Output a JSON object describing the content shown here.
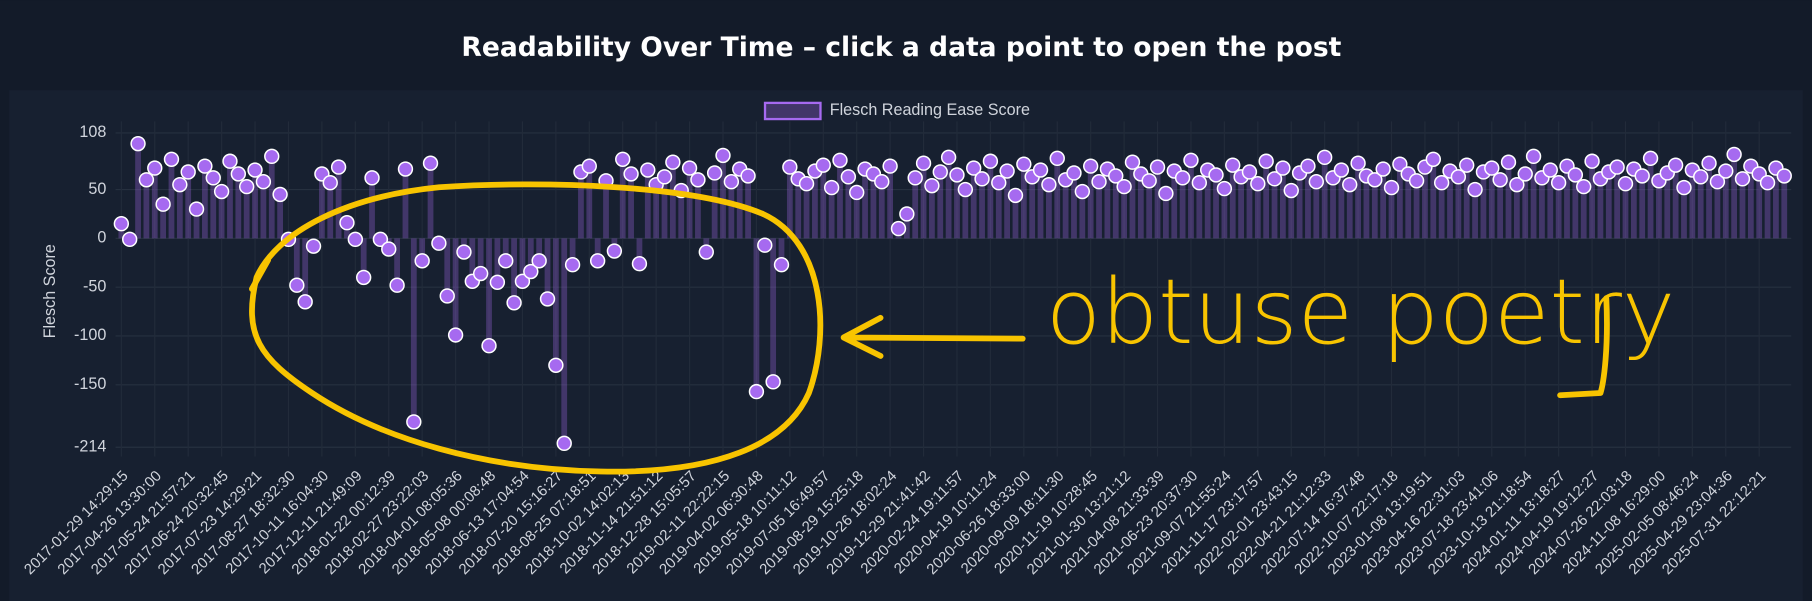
{
  "chart_data": {
    "type": "line",
    "title": "Readability Over Time – click a data point to open the post",
    "y_label": "Flesch Score",
    "categories": [
      "2017-01-29 14:29:15",
      null,
      null,
      null,
      "2017-04-26 13:30:00",
      null,
      null,
      null,
      "2017-05-24 21:57:21",
      null,
      null,
      null,
      "2017-06-24 20:32:45",
      null,
      null,
      null,
      "2017-07-23 14:29:21",
      null,
      null,
      null,
      "2017-08-27 18:32:30",
      null,
      null,
      null,
      "2017-10-11 16:04:30",
      null,
      null,
      null,
      "2017-12-11 21:49:09",
      null,
      null,
      null,
      "2018-01-22 00:12:39",
      null,
      null,
      null,
      "2018-02-27 23:22:03",
      null,
      null,
      null,
      "2018-04-01 08:05:36",
      null,
      null,
      null,
      "2018-05-08 00:08:48",
      null,
      null,
      null,
      "2018-06-13 17:04:54",
      null,
      null,
      null,
      "2018-07-20 15:16:27",
      null,
      null,
      null,
      "2018-08-25 07:18:51",
      null,
      null,
      null,
      "2018-10-02 14:02:13",
      null,
      null,
      null,
      "2018-11-14 21:51:12",
      null,
      null,
      null,
      "2018-12-28 15:05:57",
      null,
      null,
      null,
      "2019-02-11 22:22:15",
      null,
      null,
      null,
      "2019-04-02 06:30:48",
      null,
      null,
      null,
      "2019-05-18 10:11:12",
      null,
      null,
      null,
      "2019-07-05 16:49:57",
      null,
      null,
      null,
      "2019-08-29 15:25:18",
      null,
      null,
      null,
      "2019-10-26 18:02:24",
      null,
      null,
      null,
      "2019-12-29 21:41:42",
      null,
      null,
      null,
      "2020-02-24 19:11:57",
      null,
      null,
      null,
      "2020-04-19 10:11:24",
      null,
      null,
      null,
      "2020-06-26 18:33:00",
      null,
      null,
      null,
      "2020-09-09 18:11:30",
      null,
      null,
      null,
      "2020-11-19 10:28:45",
      null,
      null,
      null,
      "2021-01-30 13:21:12",
      null,
      null,
      null,
      "2021-04-08 21:33:39",
      null,
      null,
      null,
      "2021-06-23 20:37:30",
      null,
      null,
      null,
      "2021-09-07 21:55:24",
      null,
      null,
      null,
      "2021-11-17 23:17:57",
      null,
      null,
      null,
      "2022-02-01 23:43:15",
      null,
      null,
      null,
      "2022-04-21 21:12:33",
      null,
      null,
      null,
      "2022-07-14 16:37:48",
      null,
      null,
      null,
      "2022-10-07 22:17:18",
      null,
      null,
      null,
      "2023-01-08 13:19:51",
      null,
      null,
      null,
      "2023-04-16 22:31:03",
      null,
      null,
      null,
      "2023-07-18 23:41:06",
      null,
      null,
      null,
      "2023-10-13 21:18:54",
      null,
      null,
      null,
      "2024-01-11 13:18:27",
      null,
      null,
      null,
      "2024-04-19 19:12:27",
      null,
      null,
      null,
      "2024-07-26 22:03:18",
      null,
      null,
      null,
      "2024-11-08 16:29:00",
      null,
      null,
      null,
      "2025-02-05 08:46:24",
      null,
      null,
      null,
      "2025-04-29 23:04:36",
      null,
      null,
      null,
      "2025-07-31 22:12:21",
      null,
      null,
      null
    ],
    "series": [
      {
        "name": "Flesch Reading Ease Score",
        "color": "#a66af0",
        "values": [
          15,
          -1,
          97,
          60,
          72,
          35,
          81,
          55,
          68,
          30,
          74,
          62,
          48,
          79,
          66,
          53,
          70,
          58,
          84,
          45,
          -1,
          -48,
          -65,
          -8,
          66,
          57,
          73,
          16,
          -1,
          -40,
          62,
          -1,
          -11,
          -48,
          71,
          -188,
          -23,
          77,
          -5,
          -59,
          -99,
          -14,
          -44,
          -36,
          -110,
          -45,
          -23,
          -66,
          -44,
          -34,
          -23,
          -62,
          -130,
          -210,
          -27,
          68,
          74,
          -23,
          59,
          -13,
          81,
          66,
          -26,
          70,
          55,
          63,
          78,
          49,
          72,
          60,
          -14,
          67,
          85,
          58,
          71,
          64,
          -157,
          -7,
          -147,
          -27,
          73,
          61,
          56,
          69,
          75,
          52,
          80,
          63,
          47,
          71,
          66,
          58,
          74,
          10,
          25,
          62,
          77,
          54,
          68,
          83,
          65,
          50,
          72,
          61,
          79,
          57,
          69,
          44,
          76,
          63,
          70,
          55,
          82,
          60,
          67,
          48,
          74,
          58,
          71,
          64,
          53,
          78,
          66,
          59,
          73,
          46,
          69,
          62,
          80,
          57,
          70,
          65,
          51,
          75,
          63,
          68,
          56,
          79,
          61,
          72,
          49,
          67,
          74,
          58,
          83,
          62,
          70,
          55,
          77,
          64,
          60,
          71,
          52,
          76,
          66,
          59,
          73,
          81,
          57,
          69,
          63,
          75,
          50,
          68,
          72,
          60,
          78,
          55,
          66,
          84,
          62,
          70,
          57,
          74,
          65,
          53,
          79,
          61,
          68,
          73,
          56,
          71,
          64,
          82,
          59,
          67,
          75,
          52,
          70,
          63,
          77,
          58,
          69,
          86,
          61,
          74,
          66,
          57,
          72,
          64
        ]
      }
    ],
    "fill": "origin",
    "show_line": false,
    "ylim": [
      -214,
      108
    ],
    "yticks": [
      108,
      50,
      0,
      -50,
      -100,
      -150,
      -214
    ],
    "grid": true,
    "legend": "top",
    "annotations": [
      {
        "text": "obtuse poetry"
      }
    ]
  }
}
